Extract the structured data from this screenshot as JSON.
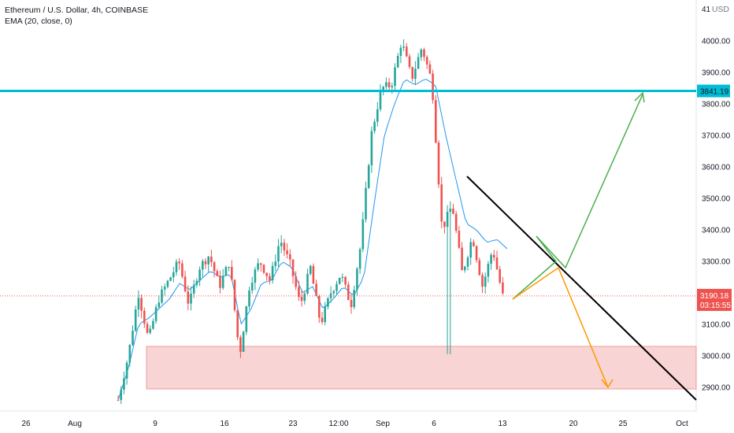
{
  "header": {
    "symbol_line": "Ethereum / U.S. Dollar, 4h, COINBASE",
    "indicator_line": "EMA (20, close, 0)",
    "currency": "USD"
  },
  "price_labels": {
    "top_partial": "41",
    "resistance": "3841.19",
    "current": "3190.18",
    "countdown": "03:15:55"
  },
  "colors": {
    "up": "#26a69a",
    "down": "#ef5350",
    "ema": "#2196f3",
    "resistance": "#00bcd4",
    "zone_fill": "#f8cdcd",
    "zone_stroke": "#ef9a9a",
    "trendline": "#000000",
    "arrow_green": "#4caf50",
    "arrow_orange": "#ff9800",
    "current_line": "#ef5350"
  },
  "chart_data": {
    "type": "candlestick",
    "x_axis_labels": [
      "26",
      "Aug",
      "9",
      "16",
      "23",
      "12:00",
      "Sep",
      "6",
      "13",
      "20",
      "25",
      "Oct"
    ],
    "y_axis_labels": [
      "2900.00",
      "3000.00",
      "3100.00",
      "3200.00",
      "3300.00",
      "3400.00",
      "3500.00",
      "3600.00",
      "3700.00",
      "3800.00",
      "3900.00",
      "4000.00"
    ],
    "ylim": [
      2830,
      4110
    ],
    "resistance_level": 3841.19,
    "current_price": 3190.18,
    "support_zone": [
      2895,
      3030
    ],
    "trendline": [
      [
        3570,
        3570
      ],
      [
        2860,
        2860
      ]
    ],
    "anchors": [
      [
        2860,
        2820
      ],
      [
        3000,
        2880
      ],
      [
        3200,
        3120
      ],
      [
        3050,
        3020
      ],
      [
        3180,
        3150
      ],
      [
        3240,
        3190
      ],
      [
        3300,
        3260
      ],
      [
        3160,
        3110
      ],
      [
        3280,
        3250
      ],
      [
        3320,
        3300
      ],
      [
        3220,
        3180
      ],
      [
        3300,
        3270
      ],
      [
        3000,
        2980
      ],
      [
        3230,
        3200
      ],
      [
        3300,
        3280
      ],
      [
        3240,
        3210
      ],
      [
        3370,
        3350
      ],
      [
        3290,
        3260
      ],
      [
        3160,
        3140
      ],
      [
        3280,
        3250
      ],
      [
        3100,
        3080
      ],
      [
        3200,
        3180
      ],
      [
        3260,
        3240
      ],
      [
        3160,
        3140
      ],
      [
        3360,
        3340
      ],
      [
        3700,
        3680
      ],
      [
        3850,
        3830
      ],
      [
        3860,
        3840
      ],
      [
        4000,
        3980
      ],
      [
        3880,
        3860
      ],
      [
        3980,
        3960
      ],
      [
        3870,
        3850
      ],
      [
        3400,
        3380
      ],
      [
        3480,
        3460
      ],
      [
        3260,
        3240
      ],
      [
        3380,
        3360
      ],
      [
        3220,
        3200
      ],
      [
        3340,
        3320
      ],
      [
        3190,
        3180
      ]
    ],
    "ema_points": [
      [
        2860,
        2820
      ],
      [
        2960,
        2930
      ],
      [
        3100,
        3080
      ],
      [
        3120,
        3110
      ],
      [
        3150,
        3130
      ],
      [
        3180,
        3170
      ],
      [
        3230,
        3220
      ],
      [
        3210,
        3200
      ],
      [
        3240,
        3230
      ],
      [
        3270,
        3260
      ],
      [
        3250,
        3240
      ],
      [
        3260,
        3250
      ],
      [
        3100,
        3090
      ],
      [
        3150,
        3140
      ],
      [
        3230,
        3220
      ],
      [
        3240,
        3230
      ],
      [
        3300,
        3290
      ],
      [
        3280,
        3270
      ],
      [
        3200,
        3190
      ],
      [
        3220,
        3210
      ],
      [
        3150,
        3140
      ],
      [
        3180,
        3170
      ],
      [
        3220,
        3210
      ],
      [
        3190,
        3180
      ],
      [
        3250,
        3240
      ],
      [
        3480,
        3460
      ],
      [
        3700,
        3680
      ],
      [
        3800,
        3790
      ],
      [
        3880,
        3870
      ],
      [
        3860,
        3850
      ],
      [
        3880,
        3870
      ],
      [
        3860,
        3850
      ],
      [
        3700,
        3680
      ],
      [
        3560,
        3550
      ],
      [
        3420,
        3410
      ],
      [
        3400,
        3390
      ],
      [
        3360,
        3350
      ],
      [
        3370,
        3360
      ],
      [
        3340,
        3330
      ]
    ],
    "green_projection": [
      3180,
      3300,
      3380,
      3280,
      3830
    ],
    "orange_projection": [
      3180,
      3280,
      2900
    ]
  }
}
